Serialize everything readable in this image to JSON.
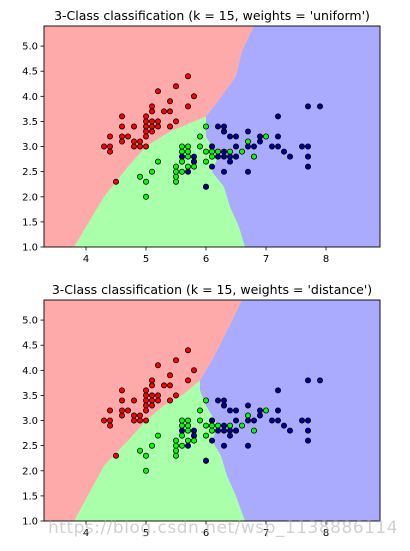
{
  "chart_data": [
    {
      "type": "scatter",
      "title": "3-Class classification (k = 15, weights = 'uniform')",
      "xlim": [
        3.3,
        8.9
      ],
      "ylim": [
        1.0,
        5.4
      ],
      "xticks": [
        4,
        5,
        6,
        7,
        8
      ],
      "yticks": [
        1.0,
        1.5,
        2.0,
        2.5,
        3.0,
        3.5,
        4.0,
        4.5,
        5.0
      ],
      "ytick_labels": [
        "1.0",
        "1.5",
        "2.0",
        "2.5",
        "3.0",
        "3.5",
        "4.0",
        "4.5",
        "5.0"
      ],
      "grid": false,
      "regions": [
        {
          "class": "red",
          "color": "#ffaaaa"
        },
        {
          "class": "green",
          "color": "#aaffaa"
        },
        {
          "class": "blue",
          "color": "#aaaaff"
        }
      ],
      "series": [
        {
          "color": "#ff0000",
          "points": [
            [
              4.3,
              3.0
            ],
            [
              4.4,
              2.9
            ],
            [
              4.4,
              3.0
            ],
            [
              4.4,
              3.2
            ],
            [
              4.5,
              2.3
            ],
            [
              4.6,
              3.1
            ],
            [
              4.6,
              3.4
            ],
            [
              4.6,
              3.6
            ],
            [
              4.6,
              3.2
            ],
            [
              4.7,
              3.2
            ],
            [
              4.8,
              3.4
            ],
            [
              4.8,
              3.0
            ],
            [
              4.8,
              3.1
            ],
            [
              4.9,
              3.0
            ],
            [
              4.9,
              3.1
            ],
            [
              5.0,
              3.6
            ],
            [
              5.0,
              3.4
            ],
            [
              5.0,
              3.0
            ],
            [
              5.0,
              3.3
            ],
            [
              5.0,
              3.2
            ],
            [
              5.0,
              3.5
            ],
            [
              5.1,
              3.5
            ],
            [
              5.1,
              3.7
            ],
            [
              5.1,
              3.3
            ],
            [
              5.1,
              3.8
            ],
            [
              5.1,
              3.4
            ],
            [
              5.2,
              3.5
            ],
            [
              5.2,
              3.4
            ],
            [
              5.2,
              4.1
            ],
            [
              5.3,
              3.7
            ],
            [
              5.4,
              3.9
            ],
            [
              5.4,
              3.7
            ],
            [
              5.4,
              3.4
            ],
            [
              5.5,
              4.2
            ],
            [
              5.5,
              3.5
            ],
            [
              5.7,
              4.4
            ],
            [
              5.7,
              3.8
            ],
            [
              5.8,
              4.0
            ]
          ]
        },
        {
          "color": "#00ff00",
          "points": [
            [
              4.9,
              2.4
            ],
            [
              5.0,
              2.0
            ],
            [
              5.0,
              2.3
            ],
            [
              5.1,
              2.5
            ],
            [
              5.2,
              2.7
            ],
            [
              5.5,
              2.3
            ],
            [
              5.5,
              2.4
            ],
            [
              5.5,
              2.5
            ],
            [
              5.5,
              2.6
            ],
            [
              5.6,
              2.9
            ],
            [
              5.6,
              3.0
            ],
            [
              5.6,
              2.5
            ],
            [
              5.6,
              2.7
            ],
            [
              5.7,
              2.8
            ],
            [
              5.7,
              2.6
            ],
            [
              5.7,
              3.0
            ],
            [
              5.7,
              2.9
            ],
            [
              5.8,
              2.7
            ],
            [
              5.8,
              2.6
            ],
            [
              5.9,
              3.0
            ],
            [
              5.9,
              3.2
            ],
            [
              6.0,
              2.2
            ],
            [
              6.0,
              2.9
            ],
            [
              6.0,
              2.7
            ],
            [
              6.0,
              3.4
            ],
            [
              6.1,
              2.9
            ],
            [
              6.1,
              2.8
            ],
            [
              6.1,
              3.0
            ],
            [
              6.2,
              2.9
            ],
            [
              6.3,
              3.3
            ],
            [
              6.4,
              2.9
            ],
            [
              6.5,
              2.8
            ],
            [
              6.6,
              2.9
            ],
            [
              6.7,
              3.1
            ],
            [
              6.8,
              2.8
            ],
            [
              7.0,
              3.2
            ]
          ]
        },
        {
          "color": "#000099",
          "points": [
            [
              5.6,
              2.8
            ],
            [
              5.7,
              2.5
            ],
            [
              5.8,
              2.8
            ],
            [
              5.8,
              2.7
            ],
            [
              6.0,
              2.2
            ],
            [
              6.1,
              3.0
            ],
            [
              6.1,
              2.6
            ],
            [
              6.2,
              2.8
            ],
            [
              6.2,
              3.4
            ],
            [
              6.3,
              3.3
            ],
            [
              6.3,
              2.9
            ],
            [
              6.3,
              2.5
            ],
            [
              6.3,
              2.8
            ],
            [
              6.3,
              3.4
            ],
            [
              6.4,
              3.2
            ],
            [
              6.4,
              2.7
            ],
            [
              6.4,
              2.8
            ],
            [
              6.5,
              3.0
            ],
            [
              6.5,
              3.2
            ],
            [
              6.5,
              2.8
            ],
            [
              6.7,
              2.5
            ],
            [
              6.7,
              3.3
            ],
            [
              6.7,
              3.0
            ],
            [
              6.8,
              3.0
            ],
            [
              6.9,
              3.2
            ],
            [
              6.9,
              3.1
            ],
            [
              7.1,
              3.0
            ],
            [
              7.2,
              3.6
            ],
            [
              7.2,
              3.2
            ],
            [
              7.2,
              3.0
            ],
            [
              7.3,
              2.9
            ],
            [
              7.4,
              2.8
            ],
            [
              7.6,
              3.0
            ],
            [
              7.7,
              3.8
            ],
            [
              7.7,
              2.6
            ],
            [
              7.7,
              2.8
            ],
            [
              7.7,
              3.0
            ],
            [
              7.9,
              3.8
            ]
          ]
        }
      ]
    },
    {
      "type": "scatter",
      "title": "3-Class classification (k = 15, weights = 'distance')",
      "xlim": [
        3.3,
        8.9
      ],
      "ylim": [
        1.0,
        5.4
      ],
      "xticks": [
        4,
        5,
        6,
        7,
        8
      ],
      "yticks": [
        1.0,
        1.5,
        2.0,
        2.5,
        3.0,
        3.5,
        4.0,
        4.5,
        5.0
      ],
      "ytick_labels": [
        "1.0",
        "1.5",
        "2.0",
        "2.5",
        "3.0",
        "3.5",
        "4.0",
        "4.5",
        "5.0"
      ],
      "grid": false,
      "regions": [
        {
          "class": "red",
          "color": "#ffaaaa"
        },
        {
          "class": "green",
          "color": "#aaffaa"
        },
        {
          "class": "blue",
          "color": "#aaaaff"
        }
      ],
      "series": [
        {
          "color": "#ff0000",
          "points": [
            [
              4.3,
              3.0
            ],
            [
              4.4,
              2.9
            ],
            [
              4.4,
              3.0
            ],
            [
              4.4,
              3.2
            ],
            [
              4.5,
              2.3
            ],
            [
              4.6,
              3.1
            ],
            [
              4.6,
              3.4
            ],
            [
              4.6,
              3.6
            ],
            [
              4.6,
              3.2
            ],
            [
              4.7,
              3.2
            ],
            [
              4.8,
              3.4
            ],
            [
              4.8,
              3.0
            ],
            [
              4.8,
              3.1
            ],
            [
              4.9,
              3.0
            ],
            [
              4.9,
              3.1
            ],
            [
              5.0,
              3.6
            ],
            [
              5.0,
              3.4
            ],
            [
              5.0,
              3.0
            ],
            [
              5.0,
              3.3
            ],
            [
              5.0,
              3.2
            ],
            [
              5.0,
              3.5
            ],
            [
              5.1,
              3.5
            ],
            [
              5.1,
              3.7
            ],
            [
              5.1,
              3.3
            ],
            [
              5.1,
              3.8
            ],
            [
              5.1,
              3.4
            ],
            [
              5.2,
              3.5
            ],
            [
              5.2,
              3.4
            ],
            [
              5.2,
              4.1
            ],
            [
              5.3,
              3.7
            ],
            [
              5.4,
              3.9
            ],
            [
              5.4,
              3.7
            ],
            [
              5.4,
              3.4
            ],
            [
              5.5,
              4.2
            ],
            [
              5.5,
              3.5
            ],
            [
              5.7,
              4.4
            ],
            [
              5.7,
              3.8
            ],
            [
              5.8,
              4.0
            ]
          ]
        },
        {
          "color": "#00ff00",
          "points": [
            [
              4.9,
              2.4
            ],
            [
              5.0,
              2.0
            ],
            [
              5.0,
              2.3
            ],
            [
              5.1,
              2.5
            ],
            [
              5.2,
              2.7
            ],
            [
              5.5,
              2.3
            ],
            [
              5.5,
              2.4
            ],
            [
              5.5,
              2.5
            ],
            [
              5.5,
              2.6
            ],
            [
              5.6,
              2.9
            ],
            [
              5.6,
              3.0
            ],
            [
              5.6,
              2.5
            ],
            [
              5.6,
              2.7
            ],
            [
              5.7,
              2.8
            ],
            [
              5.7,
              2.6
            ],
            [
              5.7,
              3.0
            ],
            [
              5.7,
              2.9
            ],
            [
              5.8,
              2.7
            ],
            [
              5.8,
              2.6
            ],
            [
              5.9,
              3.0
            ],
            [
              5.9,
              3.2
            ],
            [
              6.0,
              2.2
            ],
            [
              6.0,
              2.9
            ],
            [
              6.0,
              2.7
            ],
            [
              6.0,
              3.4
            ],
            [
              6.1,
              2.9
            ],
            [
              6.1,
              2.8
            ],
            [
              6.1,
              3.0
            ],
            [
              6.2,
              2.9
            ],
            [
              6.3,
              3.3
            ],
            [
              6.4,
              2.9
            ],
            [
              6.5,
              2.8
            ],
            [
              6.6,
              2.9
            ],
            [
              6.7,
              3.1
            ],
            [
              6.8,
              2.8
            ],
            [
              7.0,
              3.2
            ]
          ]
        },
        {
          "color": "#000099",
          "points": [
            [
              5.6,
              2.8
            ],
            [
              5.7,
              2.5
            ],
            [
              5.8,
              2.8
            ],
            [
              5.8,
              2.7
            ],
            [
              6.0,
              2.2
            ],
            [
              6.1,
              3.0
            ],
            [
              6.1,
              2.6
            ],
            [
              6.2,
              2.8
            ],
            [
              6.2,
              3.4
            ],
            [
              6.3,
              3.3
            ],
            [
              6.3,
              2.9
            ],
            [
              6.3,
              2.5
            ],
            [
              6.3,
              2.8
            ],
            [
              6.3,
              3.4
            ],
            [
              6.4,
              3.2
            ],
            [
              6.4,
              2.7
            ],
            [
              6.4,
              2.8
            ],
            [
              6.5,
              3.0
            ],
            [
              6.5,
              3.2
            ],
            [
              6.5,
              2.8
            ],
            [
              6.7,
              2.5
            ],
            [
              6.7,
              3.3
            ],
            [
              6.7,
              3.0
            ],
            [
              6.8,
              3.0
            ],
            [
              6.9,
              3.2
            ],
            [
              6.9,
              3.1
            ],
            [
              7.1,
              3.0
            ],
            [
              7.2,
              3.6
            ],
            [
              7.2,
              3.2
            ],
            [
              7.2,
              3.0
            ],
            [
              7.3,
              2.9
            ],
            [
              7.4,
              2.8
            ],
            [
              7.6,
              3.0
            ],
            [
              7.7,
              3.8
            ],
            [
              7.7,
              2.6
            ],
            [
              7.7,
              2.8
            ],
            [
              7.7,
              3.0
            ],
            [
              7.9,
              3.8
            ]
          ]
        }
      ]
    }
  ],
  "watermark": "https://blog.csdn.net/wsp_1138886114"
}
